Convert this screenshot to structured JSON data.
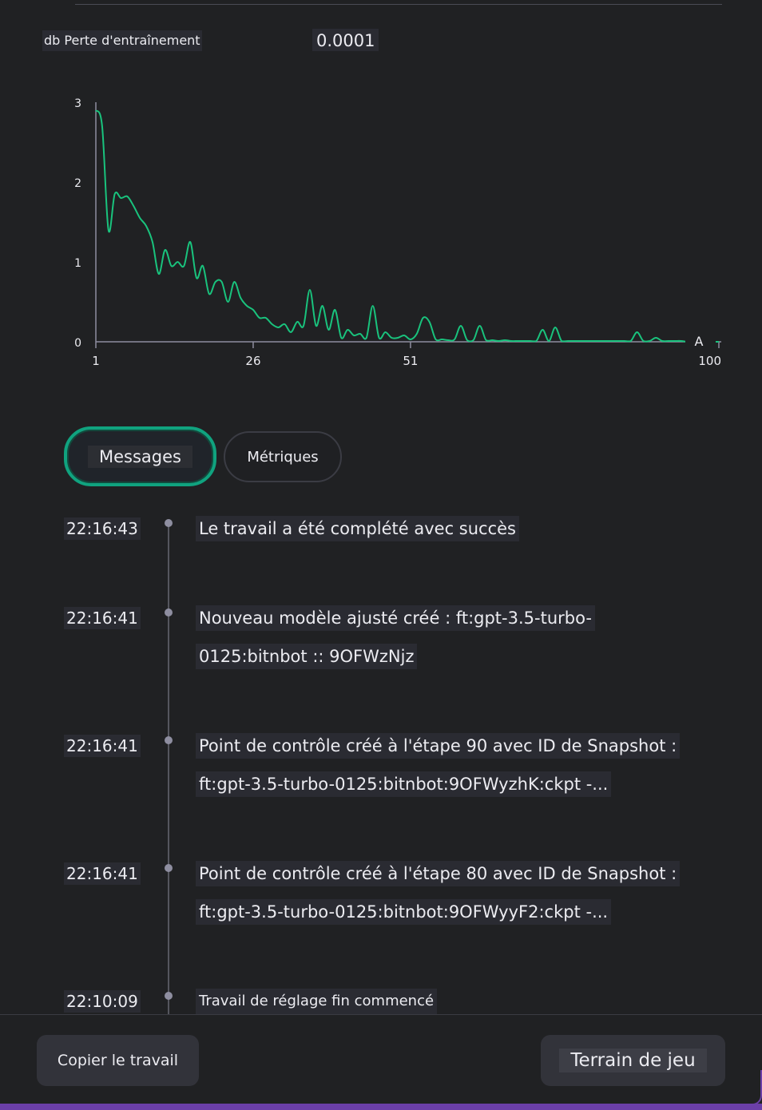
{
  "metric": {
    "label": "db Perte d'entraînement",
    "value": "0.0001"
  },
  "chart_data": {
    "type": "line",
    "title": "",
    "xlabel": "",
    "ylabel": "",
    "x_ticks": [
      "1",
      "26",
      "51",
      "100"
    ],
    "y_ticks": [
      "3",
      "2",
      "1",
      "0"
    ],
    "xlim": [
      1,
      100
    ],
    "ylim": [
      0,
      3
    ],
    "marker_label": "A",
    "series": [
      {
        "name": "Perte d'entraînement",
        "color": "#19c37d",
        "x": [
          1,
          2,
          3,
          4,
          5,
          6,
          7,
          8,
          9,
          10,
          11,
          12,
          13,
          14,
          15,
          16,
          17,
          18,
          19,
          20,
          21,
          22,
          23,
          24,
          25,
          26,
          27,
          28,
          29,
          30,
          31,
          32,
          33,
          34,
          35,
          36,
          37,
          38,
          39,
          40,
          41,
          42,
          43,
          44,
          45,
          46,
          47,
          48,
          49,
          50,
          51,
          52,
          53,
          54,
          55,
          56,
          57,
          58,
          59,
          60,
          61,
          62,
          63,
          64,
          65,
          66,
          67,
          68,
          69,
          70,
          71,
          72,
          73,
          74,
          75,
          76,
          77,
          78,
          79,
          80,
          81,
          82,
          83,
          84,
          85,
          86,
          87,
          88,
          89,
          90,
          91,
          92,
          93,
          94,
          95,
          96,
          97,
          98,
          99,
          100
        ],
        "y": [
          2.9,
          2.7,
          1.4,
          1.85,
          1.8,
          1.82,
          1.7,
          1.55,
          1.45,
          1.25,
          0.85,
          1.15,
          0.95,
          1.0,
          0.95,
          1.25,
          0.8,
          0.95,
          0.6,
          0.75,
          0.75,
          0.5,
          0.75,
          0.55,
          0.45,
          0.4,
          0.3,
          0.3,
          0.22,
          0.18,
          0.22,
          0.12,
          0.25,
          0.2,
          0.65,
          0.2,
          0.45,
          0.15,
          0.4,
          0.05,
          0.15,
          0.08,
          0.1,
          0.05,
          0.45,
          0.05,
          0.12,
          0.05,
          0.05,
          0.08,
          0.03,
          0.1,
          0.3,
          0.25,
          0.03,
          0.03,
          0.02,
          0.03,
          0.2,
          0.02,
          0.02,
          0.2,
          0.02,
          0.02,
          0.01,
          0.02,
          0.01,
          0.01,
          0.01,
          0.01,
          0.01,
          0.15,
          0.01,
          0.18,
          0.01,
          0.01,
          0.01,
          0.01,
          0.01,
          0.01,
          0.01,
          0.01,
          0.01,
          0.01,
          0.01,
          0.01,
          0.12,
          0.01,
          0.01,
          0.05,
          0.01,
          0.01,
          0.01,
          0.01,
          0.0,
          0.0,
          0.0,
          0.0,
          0.0,
          0.0
        ]
      }
    ]
  },
  "tabs": {
    "messages": "Messages",
    "metrics": "Métriques"
  },
  "events": [
    {
      "time": "22:16:43",
      "lines": [
        "Le travail a été complété avec succès"
      ]
    },
    {
      "time": "22:16:41",
      "lines": [
        "Nouveau modèle ajusté créé : ft:gpt-3.5-turbo-",
        "0125:bitnbot :: 9OFWzNjz"
      ]
    },
    {
      "time": "22:16:41",
      "lines": [
        "Point de contrôle créé à l'étape 90 avec ID de Snapshot :",
        "ft:gpt-3.5-turbo-0125:bitnbot:9OFWyzhK:ckpt -..."
      ]
    },
    {
      "time": "22:16:41",
      "lines": [
        "Point de contrôle créé à l'étape 80 avec ID de Snapshot :",
        "ft:gpt-3.5-turbo-0125:bitnbot:9OFWyyF2:ckpt -..."
      ]
    },
    {
      "time": "22:10:09",
      "lines": [
        "Travail de réglage fin commencé"
      ]
    }
  ],
  "footer": {
    "copy_label": "Copier le travail",
    "playground_label": "Terrain de jeu"
  }
}
